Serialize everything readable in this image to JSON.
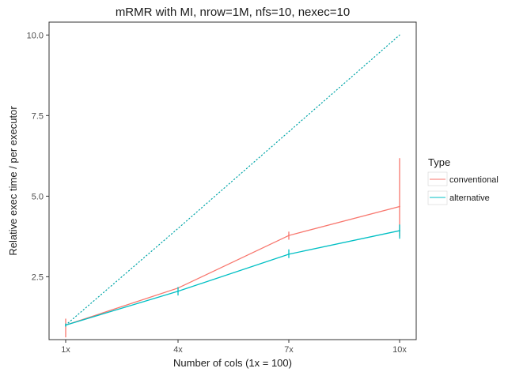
{
  "chart_data": {
    "type": "line",
    "title": "mRMR with MI, nrow=1M, nfs=10, nexec=10",
    "xlabel": "Number of cols (1x = 100)",
    "ylabel": "Relative exec time / per executor",
    "categories": [
      "1x",
      "4x",
      "7x",
      "10x"
    ],
    "x": [
      1,
      4,
      7,
      10
    ],
    "ylim": [
      0.55,
      10.4
    ],
    "yticks": [
      2.5,
      5.0,
      7.5,
      10.0
    ],
    "ytick_labels": [
      "2.5",
      "5.0",
      "7.5",
      "10.0"
    ],
    "grid": false,
    "legend": {
      "title": "Type",
      "position": "right"
    },
    "series": [
      {
        "name": "conventional",
        "color": "#F8766D",
        "values": [
          1.0,
          2.15,
          3.78,
          4.68
        ],
        "err_low": [
          0.62,
          2.13,
          3.65,
          3.75
        ],
        "err_high": [
          1.2,
          2.17,
          3.9,
          6.18
        ]
      },
      {
        "name": "alternative",
        "color": "#00BFC4",
        "values": [
          1.0,
          2.05,
          3.2,
          3.93
        ],
        "err_low": [
          0.95,
          1.92,
          3.08,
          3.68
        ],
        "err_high": [
          1.05,
          2.18,
          3.35,
          4.12
        ]
      }
    ],
    "reference_line": {
      "style": "dotted",
      "color": "#00A5A8",
      "values": [
        1.0,
        4.0,
        7.0,
        10.0
      ]
    }
  }
}
